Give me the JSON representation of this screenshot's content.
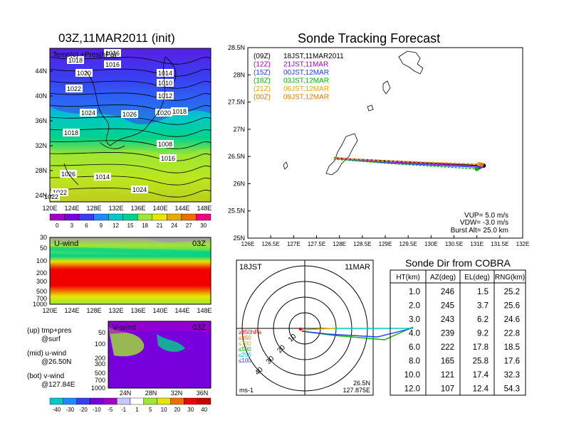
{
  "map": {
    "title": "03Z,11MAR2011 (init)",
    "label": "Temp(c) +Pres(hPa)",
    "yticks": [
      "44N",
      "40N",
      "36N",
      "32N",
      "28N",
      "24N"
    ],
    "xticks": [
      "120E",
      "124E",
      "128E",
      "132E",
      "136E",
      "140E",
      "144E",
      "148E"
    ],
    "isobars": [
      "1018",
      "1016",
      "1016",
      "1020",
      "1022",
      "1024",
      "1026",
      "1020",
      "1018",
      "1014",
      "1010",
      "1012",
      "1008",
      "1016",
      "1018",
      "1014",
      "1026",
      "1024",
      "1022",
      "1022"
    ],
    "colorbar_ticks": [
      "0",
      "3",
      "6",
      "9",
      "12",
      "15",
      "18",
      "21",
      "24",
      "27",
      "30"
    ],
    "colorbar_colors": [
      "#a000c8",
      "#7800dc",
      "#3c3cf0",
      "#1e8cff",
      "#00c8c8",
      "#00d28c",
      "#a0e632",
      "#e6e600",
      "#e6aa00",
      "#f06e00",
      "#f00082"
    ]
  },
  "uwind": {
    "label": "U-wind",
    "time": "03Z",
    "yticks": [
      "30",
      "50",
      "100",
      "200",
      "300",
      "500",
      "700",
      "1000"
    ],
    "xticks": [
      "120E",
      "124E",
      "128E",
      "132E",
      "136E",
      "140E",
      "144E",
      "148E"
    ]
  },
  "legend_notes": {
    "up1": "(up) tmp+pres",
    "up2": "@surf",
    "mid1": "(mid) u-wind",
    "mid2": "@26.50N",
    "bot1": "(bot) v-wind",
    "bot2": "@127.84E"
  },
  "vwind": {
    "label": "V-wind",
    "time": "03Z",
    "yticks": [
      "50",
      "100",
      "200",
      "300",
      "500",
      "700",
      "1000"
    ],
    "xticks": [
      "24N",
      "28N",
      "32N",
      "36N"
    ],
    "colorbar_ticks": [
      "-40",
      "-30",
      "-20",
      "-10",
      "-5",
      "-1",
      "1",
      "5",
      "10",
      "20",
      "30",
      "40"
    ],
    "colorbar_colors": [
      "#00c8c8",
      "#1e8cff",
      "#3c3cf0",
      "#7800dc",
      "#a000c8",
      "#c8c8ff",
      "#ffffff",
      "#a0e632",
      "#e6e600",
      "#f06e00",
      "#f00000",
      "#c80000"
    ]
  },
  "tracking": {
    "title": "Sonde Tracking Forecast",
    "yticks": [
      "28.5N",
      "28N",
      "27.5N",
      "27N",
      "26.5N",
      "26N",
      "25.5N",
      "25N"
    ],
    "xticks": [
      "126E",
      "126.5E",
      "127E",
      "127.5E",
      "128E",
      "128.5E",
      "129E",
      "129.5E",
      "130E",
      "130.5E",
      "131E",
      "131.5E",
      "132E"
    ],
    "legend": [
      {
        "z": "(09Z)",
        "time": "18JST,11MAR2011",
        "color": "#000000"
      },
      {
        "z": "(12Z)",
        "time": "21JST,11MAR",
        "color": "#a000c8"
      },
      {
        "z": "(15Z)",
        "time": "00JST,12MAR",
        "color": "#1e3cff"
      },
      {
        "z": "(18Z)",
        "time": "03JST,12MAR",
        "color": "#00b400"
      },
      {
        "z": "(21Z)",
        "time": "06JST,12MAR",
        "color": "#e6aa00"
      },
      {
        "z": "(00Z)",
        "time": "09JST,12MAR",
        "color": "#e67800"
      }
    ],
    "vup": "VUP= 5.0 m/s",
    "vdw": "VDW= -3.0 m/s",
    "burst": "Burst Alt= 25.0 km"
  },
  "polar": {
    "time": "18JST",
    "date": "11MAR",
    "rings": [
      "10",
      "20",
      "30",
      "40"
    ],
    "levels": [
      {
        "label": "≥850hPa",
        "color": "#f00000"
      },
      {
        "label": "≤850",
        "color": "#f06e00"
      },
      {
        "label": "≤700",
        "color": "#e6aa00"
      },
      {
        "label": "≤500",
        "color": "#00b400"
      },
      {
        "label": "≤250",
        "color": "#00c8c8"
      },
      {
        "label": "≤100",
        "color": "#1e3cff"
      }
    ],
    "units": "ms-1",
    "lat": "26.5N",
    "lon": "127.875E"
  },
  "cobra_table": {
    "title": "Sonde Dir from COBRA",
    "headers": [
      "HT(km)",
      "AZ(deg)",
      "EL(deg)",
      "RNG(km)"
    ],
    "rows": [
      [
        "1.0",
        "246",
        "1.5",
        "25.2"
      ],
      [
        "2.0",
        "245",
        "3.7",
        "25.6"
      ],
      [
        "3.0",
        "243",
        "6.2",
        "24.6"
      ],
      [
        "4.0",
        "239",
        "9.2",
        "22.8"
      ],
      [
        "6.0",
        "222",
        "17.8",
        "18.5"
      ],
      [
        "8.0",
        "165",
        "25.8",
        "17.6"
      ],
      [
        "10.0",
        "121",
        "17.4",
        "32.3"
      ],
      [
        "12.0",
        "107",
        "12.4",
        "54.3"
      ]
    ]
  },
  "chart_data": [
    {
      "type": "line",
      "title": "Sonde Tracking Forecast",
      "xlim": [
        126,
        132
      ],
      "ylim": [
        25,
        28.5
      ],
      "series": [
        {
          "name": "(09Z) 18JST,11MAR2011",
          "x": [
            127.88,
            129.1,
            131.15
          ],
          "y": [
            26.47,
            26.42,
            26.33
          ]
        },
        {
          "name": "(12Z) 21JST,11MAR",
          "x": [
            127.88,
            129.1,
            131.1
          ],
          "y": [
            26.48,
            26.4,
            26.32
          ]
        },
        {
          "name": "(15Z) 00JST,12MAR",
          "x": [
            127.88,
            129.1,
            131.05
          ],
          "y": [
            26.46,
            26.38,
            26.3
          ]
        },
        {
          "name": "(18Z) 03JST,12MAR",
          "x": [
            127.88,
            129.1,
            131.0
          ],
          "y": [
            26.45,
            26.37,
            26.27
          ]
        },
        {
          "name": "(21Z) 06JST,12MAR",
          "x": [
            127.88,
            129.1,
            131.05
          ],
          "y": [
            26.47,
            26.42,
            26.36
          ]
        },
        {
          "name": "(00Z) 09JST,12MAR",
          "x": [
            127.88,
            129.1,
            131.1
          ],
          "y": [
            26.46,
            26.41,
            26.35
          ]
        }
      ]
    },
    {
      "type": "table",
      "title": "Sonde Dir from COBRA",
      "columns": [
        "HT(km)",
        "AZ(deg)",
        "EL(deg)",
        "RNG(km)"
      ],
      "rows": [
        [
          1.0,
          246,
          1.5,
          25.2
        ],
        [
          2.0,
          245,
          3.7,
          25.6
        ],
        [
          3.0,
          243,
          6.2,
          24.6
        ],
        [
          4.0,
          239,
          9.2,
          22.8
        ],
        [
          6.0,
          222,
          17.8,
          18.5
        ],
        [
          8.0,
          165,
          25.8,
          17.6
        ],
        [
          10.0,
          121,
          17.4,
          32.3
        ],
        [
          12.0,
          107,
          12.4,
          54.3
        ]
      ]
    }
  ]
}
